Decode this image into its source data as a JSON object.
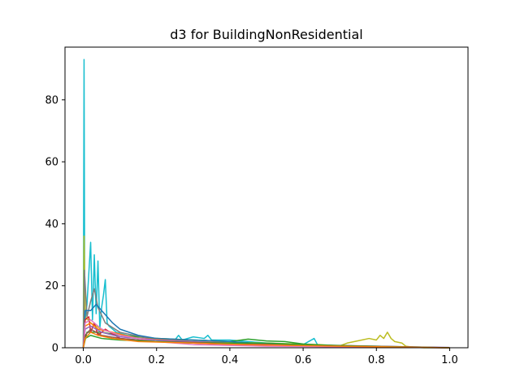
{
  "chart_data": {
    "type": "line",
    "title": "d3 for BuildingNonResidential",
    "xlabel": "",
    "ylabel": "",
    "xlim": [
      -0.05,
      1.05
    ],
    "ylim": [
      0,
      97
    ],
    "xticks": [
      0.0,
      0.2,
      0.4,
      0.6,
      0.8,
      1.0
    ],
    "xtick_labels": [
      "0.0",
      "0.2",
      "0.4",
      "0.6",
      "0.8",
      "1.0"
    ],
    "yticks": [
      0,
      20,
      40,
      60,
      80
    ],
    "ytick_labels": [
      "0",
      "20",
      "40",
      "60",
      "80"
    ],
    "grid": false,
    "legend": "none",
    "series": [
      {
        "color": "#17becf",
        "points": [
          [
            0,
            0
          ],
          [
            0.002,
            93
          ],
          [
            0.004,
            8
          ],
          [
            0.01,
            14
          ],
          [
            0.02,
            34
          ],
          [
            0.025,
            9
          ],
          [
            0.03,
            30
          ],
          [
            0.035,
            11
          ],
          [
            0.04,
            28
          ],
          [
            0.045,
            6
          ],
          [
            0.05,
            13
          ],
          [
            0.055,
            17
          ],
          [
            0.06,
            22
          ],
          [
            0.065,
            8
          ],
          [
            0.07,
            7
          ],
          [
            0.09,
            5
          ],
          [
            0.12,
            4
          ],
          [
            0.2,
            3
          ],
          [
            0.25,
            2.5
          ],
          [
            0.26,
            4
          ],
          [
            0.27,
            2.5
          ],
          [
            0.3,
            3.5
          ],
          [
            0.33,
            3
          ],
          [
            0.34,
            4
          ],
          [
            0.35,
            2.5
          ],
          [
            0.4,
            2.5
          ],
          [
            0.5,
            1.5
          ],
          [
            0.6,
            1
          ],
          [
            0.63,
            3
          ],
          [
            0.64,
            0.8
          ],
          [
            0.8,
            0.5
          ],
          [
            1,
            0
          ]
        ]
      },
      {
        "color": "#bcbd22",
        "points": [
          [
            0,
            0
          ],
          [
            0.002,
            36
          ],
          [
            0.005,
            10
          ],
          [
            0.02,
            8
          ],
          [
            0.05,
            6
          ],
          [
            0.1,
            4
          ],
          [
            0.2,
            3
          ],
          [
            0.3,
            2
          ],
          [
            0.5,
            1.5
          ],
          [
            0.65,
            1
          ],
          [
            0.7,
            0.6
          ],
          [
            0.72,
            1.5
          ],
          [
            0.76,
            2.5
          ],
          [
            0.78,
            3
          ],
          [
            0.8,
            2.5
          ],
          [
            0.81,
            4
          ],
          [
            0.82,
            3
          ],
          [
            0.83,
            5
          ],
          [
            0.84,
            3
          ],
          [
            0.85,
            2
          ],
          [
            0.87,
            1.5
          ],
          [
            0.88,
            0.5
          ],
          [
            0.9,
            0.2
          ],
          [
            0.93,
            0
          ],
          [
            1,
            0
          ]
        ]
      },
      {
        "color": "#2ca02c",
        "points": [
          [
            0,
            0
          ],
          [
            0.01,
            5
          ],
          [
            0.05,
            5
          ],
          [
            0.1,
            4
          ],
          [
            0.2,
            3
          ],
          [
            0.3,
            2.5
          ],
          [
            0.4,
            2
          ],
          [
            0.45,
            2.8
          ],
          [
            0.5,
            2.2
          ],
          [
            0.55,
            2
          ],
          [
            0.6,
            1.2
          ],
          [
            0.7,
            0.5
          ],
          [
            0.8,
            0.3
          ],
          [
            0.9,
            0.2
          ],
          [
            1,
            0
          ]
        ]
      },
      {
        "color": "#7f7f7f",
        "points": [
          [
            0,
            0
          ],
          [
            0.003,
            25
          ],
          [
            0.01,
            10
          ],
          [
            0.02,
            15
          ],
          [
            0.03,
            19
          ],
          [
            0.04,
            13
          ],
          [
            0.06,
            8
          ],
          [
            0.1,
            5
          ],
          [
            0.2,
            2.5
          ],
          [
            0.3,
            1.5
          ],
          [
            0.5,
            0.8
          ],
          [
            0.7,
            0.3
          ],
          [
            1,
            0
          ]
        ]
      },
      {
        "color": "#1f77b4",
        "points": [
          [
            0,
            0
          ],
          [
            0.005,
            12
          ],
          [
            0.02,
            12
          ],
          [
            0.035,
            14
          ],
          [
            0.05,
            12
          ],
          [
            0.08,
            8
          ],
          [
            0.1,
            6
          ],
          [
            0.15,
            4
          ],
          [
            0.2,
            3
          ],
          [
            0.3,
            2.5
          ],
          [
            0.4,
            2
          ],
          [
            0.5,
            1.2
          ],
          [
            0.6,
            0.8
          ],
          [
            0.8,
            0.3
          ],
          [
            1,
            0.05
          ]
        ]
      },
      {
        "color": "#d62728",
        "points": [
          [
            0,
            0
          ],
          [
            0.005,
            9
          ],
          [
            0.015,
            10
          ],
          [
            0.02,
            5
          ],
          [
            0.03,
            8
          ],
          [
            0.04,
            4
          ],
          [
            0.06,
            6
          ],
          [
            0.1,
            3
          ],
          [
            0.2,
            2
          ],
          [
            0.4,
            1
          ],
          [
            0.6,
            0.5
          ],
          [
            1,
            0
          ]
        ]
      },
      {
        "color": "#ff7f0e",
        "points": [
          [
            0,
            0
          ],
          [
            0.005,
            7
          ],
          [
            0.02,
            8
          ],
          [
            0.04,
            6
          ],
          [
            0.08,
            5
          ],
          [
            0.15,
            3
          ],
          [
            0.3,
            2
          ],
          [
            0.5,
            1
          ],
          [
            0.7,
            0.5
          ],
          [
            1,
            0
          ]
        ]
      },
      {
        "color": "#9467bd",
        "points": [
          [
            0,
            0
          ],
          [
            0.005,
            6
          ],
          [
            0.02,
            7
          ],
          [
            0.05,
            5
          ],
          [
            0.1,
            3.5
          ],
          [
            0.2,
            2.5
          ],
          [
            0.4,
            1.5
          ],
          [
            0.6,
            0.8
          ],
          [
            1,
            0.1
          ]
        ]
      },
      {
        "color": "#e377c2",
        "points": [
          [
            0,
            0
          ],
          [
            0.005,
            8
          ],
          [
            0.02,
            9
          ],
          [
            0.05,
            6
          ],
          [
            0.1,
            4
          ],
          [
            0.2,
            2
          ],
          [
            0.3,
            1
          ],
          [
            0.5,
            0.5
          ],
          [
            1,
            0
          ]
        ]
      },
      {
        "color": "#8c564b",
        "points": [
          [
            0,
            0
          ],
          [
            0.005,
            4
          ],
          [
            0.02,
            6
          ],
          [
            0.05,
            4
          ],
          [
            0.1,
            3
          ],
          [
            0.2,
            2
          ],
          [
            0.4,
            1.5
          ],
          [
            0.6,
            1
          ],
          [
            0.8,
            0.5
          ],
          [
            1,
            0
          ]
        ]
      },
      {
        "color": "#2ca02c",
        "points": [
          [
            0,
            0
          ],
          [
            0.005,
            3
          ],
          [
            0.02,
            4
          ],
          [
            0.05,
            3
          ],
          [
            0.1,
            2.5
          ],
          [
            0.2,
            2
          ],
          [
            0.3,
            1.5
          ],
          [
            0.5,
            1.5
          ],
          [
            0.6,
            1
          ],
          [
            0.8,
            0.4
          ],
          [
            1,
            0
          ]
        ]
      },
      {
        "color": "#ff7f0e",
        "points": [
          [
            0,
            0
          ],
          [
            0.005,
            3
          ],
          [
            0.02,
            5
          ],
          [
            0.04,
            4
          ],
          [
            0.08,
            3
          ],
          [
            0.15,
            2
          ],
          [
            0.3,
            1.5
          ],
          [
            0.45,
            1
          ],
          [
            0.7,
            0.5
          ],
          [
            1,
            0
          ]
        ]
      }
    ]
  }
}
